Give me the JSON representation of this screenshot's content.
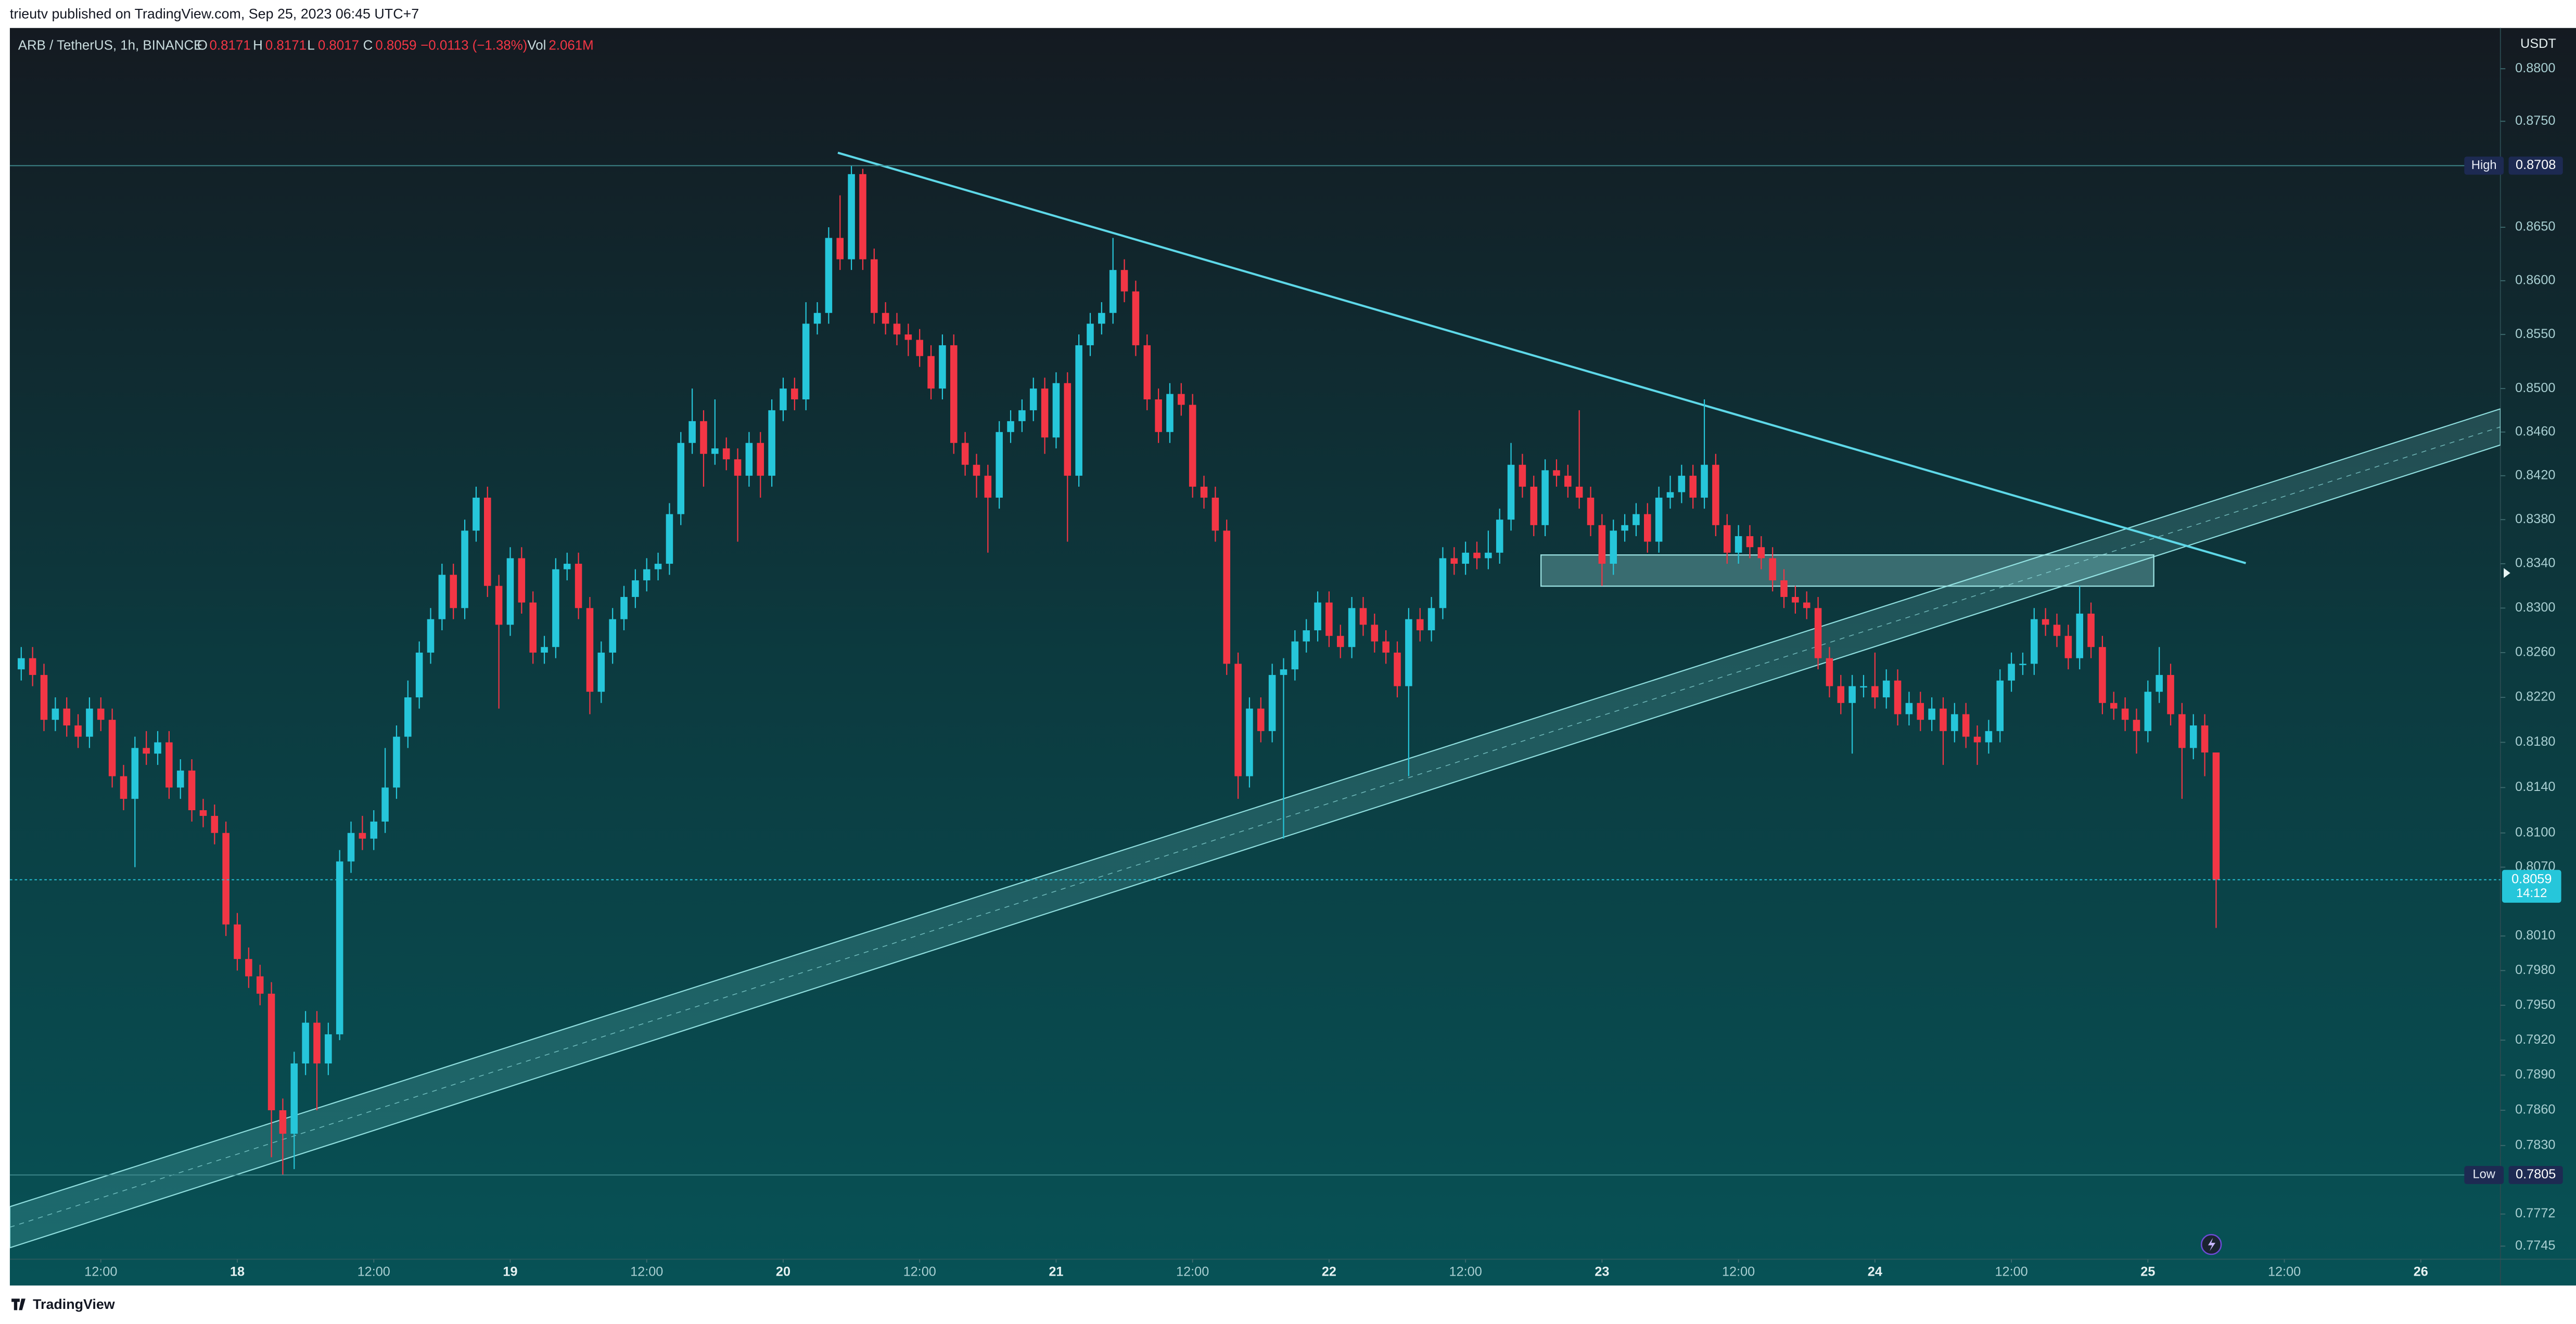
{
  "publisher_line": "trieutv published on TradingView.com, Sep 25, 2023 06:45 UTC+7",
  "footer": "TradingView",
  "chart_data": {
    "type": "candlestick",
    "title": "ARB / TetherUS, 1h, BINANCE",
    "ohlc_readout": [
      {
        "label": "O",
        "value": "0.8171"
      },
      {
        "label": "H",
        "value": "0.8171"
      },
      {
        "label": "L",
        "value": "0.8017"
      },
      {
        "label": "C",
        "value": "0.8059"
      }
    ],
    "change": "−0.0113 (−1.38%)",
    "volume": {
      "label": "Vol",
      "value": "2.061M"
    },
    "y_axis_unit": "USDT",
    "log_scale": true,
    "up_color": "#26c6da",
    "down_color": "#f23645",
    "high_marker": {
      "label": "High",
      "value": 0.8708
    },
    "low_marker": {
      "label": "Low",
      "value": 0.7805
    },
    "last_price": {
      "value": 0.8059,
      "countdown": "14:12"
    },
    "xlim": [
      -20,
      199
    ],
    "xticks": [
      {
        "value": -12,
        "label": "12:00"
      },
      {
        "value": 0,
        "label": "18"
      },
      {
        "value": 12,
        "label": "12:00"
      },
      {
        "value": 24,
        "label": "19"
      },
      {
        "value": 36,
        "label": "12:00"
      },
      {
        "value": 48,
        "label": "20"
      },
      {
        "value": 60,
        "label": "12:00"
      },
      {
        "value": 72,
        "label": "21"
      },
      {
        "value": 84,
        "label": "12:00"
      },
      {
        "value": 96,
        "label": "22"
      },
      {
        "value": 108,
        "label": "12:00"
      },
      {
        "value": 120,
        "label": "23"
      },
      {
        "value": 132,
        "label": "12:00"
      },
      {
        "value": 144,
        "label": "24"
      },
      {
        "value": 156,
        "label": "12:00"
      },
      {
        "value": 168,
        "label": "25"
      },
      {
        "value": 180,
        "label": "12:00"
      },
      {
        "value": 192,
        "label": "26"
      }
    ],
    "ylim": [
      0.7734,
      0.8839
    ],
    "yticks": [
      {
        "value": 0.88,
        "label": "0.8800"
      },
      {
        "value": 0.875,
        "label": "0.8750"
      },
      {
        "value": 0.865,
        "label": "0.8650"
      },
      {
        "value": 0.86,
        "label": "0.8600"
      },
      {
        "value": 0.855,
        "label": "0.8550"
      },
      {
        "value": 0.85,
        "label": "0.8500"
      },
      {
        "value": 0.846,
        "label": "0.8460"
      },
      {
        "value": 0.842,
        "label": "0.8420"
      },
      {
        "value": 0.838,
        "label": "0.8380"
      },
      {
        "value": 0.834,
        "label": "0.8340"
      },
      {
        "value": 0.83,
        "label": "0.8300"
      },
      {
        "value": 0.826,
        "label": "0.8260"
      },
      {
        "value": 0.822,
        "label": "0.8220"
      },
      {
        "value": 0.818,
        "label": "0.8180"
      },
      {
        "value": 0.814,
        "label": "0.8140"
      },
      {
        "value": 0.81,
        "label": "0.8100"
      },
      {
        "value": 0.807,
        "label": "0.8070"
      },
      {
        "value": 0.801,
        "label": "0.8010"
      },
      {
        "value": 0.798,
        "label": "0.7980"
      },
      {
        "value": 0.795,
        "label": "0.7950"
      },
      {
        "value": 0.792,
        "label": "0.7920"
      },
      {
        "value": 0.789,
        "label": "0.7890"
      },
      {
        "value": 0.786,
        "label": "0.7860"
      },
      {
        "value": 0.783,
        "label": "0.7830"
      },
      0.7772,
      0.7745
    ],
    "x": [
      -19,
      -18,
      -17,
      -16,
      -15,
      -14,
      -13,
      -12,
      -11,
      -10,
      -9,
      -8,
      -7,
      -6,
      -5,
      -4,
      -3,
      -2,
      -1,
      0,
      1,
      2,
      3,
      4,
      5,
      6,
      7,
      8,
      9,
      10,
      11,
      12,
      13,
      14,
      15,
      16,
      17,
      18,
      19,
      20,
      21,
      22,
      23,
      24,
      25,
      26,
      27,
      28,
      29,
      30,
      31,
      32,
      33,
      34,
      35,
      36,
      37,
      38,
      39,
      40,
      41,
      42,
      43,
      44,
      45,
      46,
      47,
      48,
      49,
      50,
      51,
      52,
      53,
      54,
      55,
      56,
      57,
      58,
      59,
      60,
      61,
      62,
      63,
      64,
      65,
      66,
      67,
      68,
      69,
      70,
      71,
      72,
      73,
      74,
      75,
      76,
      77,
      78,
      79,
      80,
      81,
      82,
      83,
      84,
      85,
      86,
      87,
      88,
      89,
      90,
      91,
      92,
      93,
      94,
      95,
      96,
      97,
      98,
      99,
      100,
      101,
      102,
      103,
      104,
      105,
      106,
      107,
      108,
      109,
      110,
      111,
      112,
      113,
      114,
      115,
      116,
      117,
      118,
      119,
      120,
      121,
      122,
      123,
      124,
      125,
      126,
      127,
      128,
      129,
      130,
      131,
      132,
      133,
      134,
      135,
      136,
      137,
      138,
      139,
      140,
      141,
      142,
      143,
      144,
      145,
      146,
      147,
      148,
      149,
      150,
      151,
      152,
      153,
      154,
      155,
      156,
      157,
      158,
      159,
      160,
      161,
      162,
      163,
      164,
      165,
      166,
      167,
      168,
      169,
      170,
      171,
      172,
      173,
      174
    ],
    "open": [
      0.8245,
      0.8255,
      0.824,
      0.82,
      0.821,
      0.8195,
      0.8185,
      0.821,
      0.82,
      0.815,
      0.813,
      0.8175,
      0.817,
      0.818,
      0.814,
      0.8155,
      0.812,
      0.8115,
      0.81,
      0.802,
      0.799,
      0.7975,
      0.796,
      0.786,
      0.784,
      0.79,
      0.7935,
      0.79,
      0.7925,
      0.8075,
      0.81,
      0.8095,
      0.811,
      0.814,
      0.8185,
      0.822,
      0.826,
      0.829,
      0.833,
      0.83,
      0.837,
      0.84,
      0.832,
      0.8285,
      0.8345,
      0.8305,
      0.826,
      0.8265,
      0.8335,
      0.834,
      0.83,
      0.8225,
      0.826,
      0.829,
      0.831,
      0.8325,
      0.8335,
      0.834,
      0.8385,
      0.845,
      0.847,
      0.844,
      0.8445,
      0.8435,
      0.842,
      0.845,
      0.842,
      0.848,
      0.85,
      0.849,
      0.856,
      0.857,
      0.864,
      0.862,
      0.87,
      0.862,
      0.857,
      0.856,
      0.855,
      0.8545,
      0.853,
      0.85,
      0.854,
      0.845,
      0.843,
      0.842,
      0.84,
      0.846,
      0.847,
      0.848,
      0.85,
      0.8455,
      0.8505,
      0.842,
      0.854,
      0.856,
      0.857,
      0.861,
      0.859,
      0.854,
      0.849,
      0.846,
      0.8495,
      0.8485,
      0.841,
      0.84,
      0.837,
      0.825,
      0.815,
      0.821,
      0.819,
      0.824,
      0.8245,
      0.827,
      0.828,
      0.8305,
      0.8275,
      0.8265,
      0.83,
      0.8285,
      0.827,
      0.826,
      0.823,
      0.829,
      0.828,
      0.83,
      0.8345,
      0.834,
      0.835,
      0.8345,
      0.835,
      0.838,
      0.843,
      0.841,
      0.8375,
      0.8425,
      0.842,
      0.841,
      0.84,
      0.8375,
      0.834,
      0.837,
      0.8375,
      0.8385,
      0.836,
      0.84,
      0.8405,
      0.842,
      0.84,
      0.843,
      0.8375,
      0.835,
      0.8365,
      0.8355,
      0.8345,
      0.8325,
      0.831,
      0.8305,
      0.83,
      0.8255,
      0.823,
      0.8215,
      0.823,
      0.823,
      0.822,
      0.8235,
      0.8205,
      0.8215,
      0.82,
      0.821,
      0.819,
      0.8205,
      0.8185,
      0.818,
      0.819,
      0.8235,
      0.825,
      0.825,
      0.829,
      0.8285,
      0.8275,
      0.8255,
      0.8295,
      0.8265,
      0.8215,
      0.821,
      0.82,
      0.819,
      0.8225,
      0.824,
      0.8205,
      0.8175,
      0.8195,
      0.8171
    ],
    "high": [
      0.8265,
      0.8265,
      0.825,
      0.822,
      0.822,
      0.8205,
      0.822,
      0.822,
      0.821,
      0.816,
      0.8185,
      0.819,
      0.819,
      0.819,
      0.8165,
      0.8165,
      0.813,
      0.8125,
      0.811,
      0.803,
      0.8,
      0.7985,
      0.797,
      0.787,
      0.791,
      0.7945,
      0.7945,
      0.7935,
      0.8085,
      0.811,
      0.8115,
      0.812,
      0.8175,
      0.8195,
      0.8235,
      0.827,
      0.83,
      0.834,
      0.834,
      0.838,
      0.841,
      0.841,
      0.833,
      0.8355,
      0.8355,
      0.8315,
      0.8275,
      0.8345,
      0.835,
      0.835,
      0.831,
      0.827,
      0.83,
      0.832,
      0.8335,
      0.8345,
      0.835,
      0.8395,
      0.846,
      0.85,
      0.848,
      0.849,
      0.8455,
      0.8445,
      0.846,
      0.846,
      0.849,
      0.851,
      0.851,
      0.858,
      0.858,
      0.865,
      0.868,
      0.8708,
      0.8705,
      0.863,
      0.858,
      0.857,
      0.856,
      0.8555,
      0.854,
      0.855,
      0.855,
      0.846,
      0.844,
      0.843,
      0.847,
      0.848,
      0.849,
      0.851,
      0.851,
      0.8515,
      0.8515,
      0.855,
      0.857,
      0.858,
      0.864,
      0.862,
      0.86,
      0.855,
      0.85,
      0.8505,
      0.8505,
      0.8495,
      0.842,
      0.841,
      0.838,
      0.826,
      0.822,
      0.822,
      0.825,
      0.8255,
      0.828,
      0.829,
      0.8315,
      0.8315,
      0.8285,
      0.831,
      0.831,
      0.8295,
      0.828,
      0.827,
      0.83,
      0.83,
      0.831,
      0.8355,
      0.8355,
      0.836,
      0.836,
      0.837,
      0.839,
      0.845,
      0.844,
      0.842,
      0.8435,
      0.8435,
      0.843,
      0.848,
      0.841,
      0.8385,
      0.838,
      0.8385,
      0.8395,
      0.8395,
      0.841,
      0.842,
      0.843,
      0.843,
      0.849,
      0.844,
      0.8385,
      0.8375,
      0.8375,
      0.8365,
      0.8355,
      0.8335,
      0.832,
      0.8315,
      0.831,
      0.8265,
      0.824,
      0.824,
      0.824,
      0.826,
      0.8245,
      0.8245,
      0.8225,
      0.8225,
      0.822,
      0.822,
      0.8215,
      0.8215,
      0.8195,
      0.82,
      0.8245,
      0.826,
      0.826,
      0.83,
      0.83,
      0.8295,
      0.8285,
      0.832,
      0.8305,
      0.8275,
      0.8225,
      0.822,
      0.821,
      0.8235,
      0.8265,
      0.825,
      0.8215,
      0.8205,
      0.8205,
      0.8171
    ],
    "low": [
      0.8235,
      0.823,
      0.819,
      0.819,
      0.8185,
      0.8175,
      0.8175,
      0.819,
      0.814,
      0.812,
      0.807,
      0.816,
      0.816,
      0.813,
      0.813,
      0.811,
      0.8105,
      0.809,
      0.801,
      0.798,
      0.7965,
      0.795,
      0.782,
      0.7805,
      0.781,
      0.789,
      0.786,
      0.789,
      0.792,
      0.8065,
      0.8085,
      0.8085,
      0.81,
      0.813,
      0.8175,
      0.821,
      0.825,
      0.828,
      0.829,
      0.829,
      0.836,
      0.831,
      0.821,
      0.8275,
      0.8295,
      0.825,
      0.825,
      0.8255,
      0.8325,
      0.829,
      0.8205,
      0.8215,
      0.825,
      0.828,
      0.83,
      0.8315,
      0.8325,
      0.833,
      0.8375,
      0.844,
      0.841,
      0.843,
      0.8425,
      0.836,
      0.841,
      0.84,
      0.841,
      0.847,
      0.848,
      0.848,
      0.855,
      0.856,
      0.861,
      0.861,
      0.861,
      0.856,
      0.855,
      0.854,
      0.853,
      0.852,
      0.849,
      0.849,
      0.844,
      0.842,
      0.84,
      0.835,
      0.839,
      0.845,
      0.846,
      0.847,
      0.844,
      0.8445,
      0.836,
      0.841,
      0.853,
      0.855,
      0.856,
      0.858,
      0.853,
      0.848,
      0.845,
      0.845,
      0.8475,
      0.84,
      0.839,
      0.836,
      0.824,
      0.813,
      0.814,
      0.818,
      0.818,
      0.8095,
      0.8235,
      0.826,
      0.827,
      0.8265,
      0.8255,
      0.8255,
      0.8275,
      0.826,
      0.825,
      0.822,
      0.815,
      0.827,
      0.827,
      0.829,
      0.833,
      0.833,
      0.8335,
      0.8335,
      0.834,
      0.837,
      0.84,
      0.8365,
      0.8365,
      0.841,
      0.84,
      0.839,
      0.8365,
      0.832,
      0.833,
      0.836,
      0.8365,
      0.835,
      0.835,
      0.839,
      0.8395,
      0.839,
      0.839,
      0.8365,
      0.834,
      0.834,
      0.8345,
      0.8335,
      0.8315,
      0.83,
      0.8295,
      0.829,
      0.8245,
      0.822,
      0.8205,
      0.817,
      0.822,
      0.821,
      0.821,
      0.8195,
      0.8195,
      0.819,
      0.819,
      0.816,
      0.818,
      0.8175,
      0.816,
      0.817,
      0.818,
      0.8225,
      0.824,
      0.824,
      0.8275,
      0.8265,
      0.8245,
      0.8245,
      0.8255,
      0.8205,
      0.82,
      0.819,
      0.817,
      0.818,
      0.8215,
      0.8195,
      0.813,
      0.8165,
      0.815,
      0.8017
    ],
    "close": [
      0.8255,
      0.824,
      0.82,
      0.821,
      0.8195,
      0.8185,
      0.821,
      0.82,
      0.815,
      0.813,
      0.8175,
      0.817,
      0.818,
      0.814,
      0.8155,
      0.812,
      0.8115,
      0.81,
      0.802,
      0.799,
      0.7975,
      0.796,
      0.786,
      0.784,
      0.79,
      0.7935,
      0.79,
      0.7925,
      0.8075,
      0.81,
      0.8095,
      0.811,
      0.814,
      0.8185,
      0.822,
      0.826,
      0.829,
      0.833,
      0.83,
      0.837,
      0.84,
      0.832,
      0.8285,
      0.8345,
      0.8305,
      0.826,
      0.8265,
      0.8335,
      0.834,
      0.83,
      0.8225,
      0.826,
      0.829,
      0.831,
      0.8325,
      0.8335,
      0.834,
      0.8385,
      0.845,
      0.847,
      0.844,
      0.8445,
      0.8435,
      0.842,
      0.845,
      0.842,
      0.848,
      0.85,
      0.849,
      0.856,
      0.857,
      0.864,
      0.862,
      0.87,
      0.862,
      0.857,
      0.856,
      0.855,
      0.8545,
      0.853,
      0.85,
      0.854,
      0.845,
      0.843,
      0.842,
      0.84,
      0.846,
      0.847,
      0.848,
      0.85,
      0.8455,
      0.8505,
      0.842,
      0.854,
      0.856,
      0.857,
      0.861,
      0.859,
      0.854,
      0.849,
      0.846,
      0.8495,
      0.8485,
      0.841,
      0.84,
      0.837,
      0.825,
      0.815,
      0.821,
      0.819,
      0.824,
      0.8245,
      0.827,
      0.828,
      0.8305,
      0.8275,
      0.8265,
      0.83,
      0.8285,
      0.827,
      0.826,
      0.823,
      0.829,
      0.828,
      0.83,
      0.8345,
      0.834,
      0.835,
      0.8345,
      0.835,
      0.838,
      0.843,
      0.841,
      0.8375,
      0.8425,
      0.842,
      0.841,
      0.84,
      0.8375,
      0.834,
      0.837,
      0.8375,
      0.8385,
      0.836,
      0.84,
      0.8405,
      0.842,
      0.84,
      0.843,
      0.8375,
      0.835,
      0.8365,
      0.8355,
      0.8345,
      0.8325,
      0.831,
      0.8305,
      0.83,
      0.8255,
      0.823,
      0.8215,
      0.823,
      0.823,
      0.822,
      0.8235,
      0.8205,
      0.8215,
      0.82,
      0.821,
      0.819,
      0.8205,
      0.8185,
      0.818,
      0.819,
      0.8235,
      0.825,
      0.825,
      0.829,
      0.8285,
      0.8275,
      0.8255,
      0.8295,
      0.8265,
      0.8215,
      0.821,
      0.82,
      0.819,
      0.8225,
      0.824,
      0.8205,
      0.8175,
      0.8195,
      0.8171,
      0.8059
    ]
  }
}
